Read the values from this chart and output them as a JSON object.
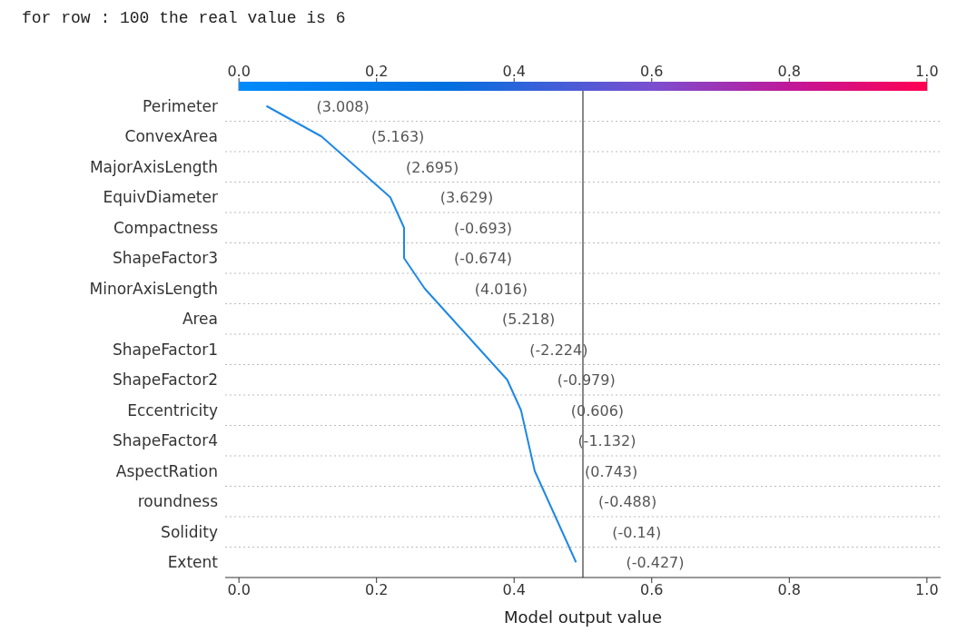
{
  "chart_data": {
    "type": "line",
    "orientation": "horizontal",
    "title": "for row : 100  the real value is  6",
    "xlabel": "Model output value",
    "categories": [
      "Perimeter",
      "ConvexArea",
      "MajorAxisLength",
      "EquivDiameter",
      "Compactness",
      "ShapeFactor3",
      "MinorAxisLength",
      "Area",
      "ShapeFactor1",
      "ShapeFactor2",
      "Eccentricity",
      "ShapeFactor4",
      "AspectRation",
      "roundness",
      "Solidity",
      "Extent"
    ],
    "series": [
      {
        "color": "#1e88e5",
        "values": [
          0.04,
          0.12,
          0.17,
          0.22,
          0.24,
          0.24,
          0.27,
          0.31,
          0.35,
          0.39,
          0.41,
          0.42,
          0.43,
          0.45,
          0.47,
          0.49
        ]
      }
    ],
    "xlim": [
      -0.02,
      1.02
    ],
    "xticks": [
      {
        "value": 0,
        "label": "0.0"
      },
      0.2,
      0.4,
      0.6,
      0.8,
      {
        "value": 1,
        "label": "1.0"
      }
    ],
    "x2lim": [
      -0.02,
      1.02
    ],
    "x2ticks": [
      {
        "value": 0,
        "label": "0.0"
      },
      0.2,
      0.4,
      0.6,
      0.8,
      {
        "value": 1,
        "label": "1.0"
      }
    ],
    "ref_lines": [
      {
        "axis": "x",
        "value": 0.5,
        "color": "#888888"
      }
    ],
    "grid": "y",
    "marker": "none",
    "line_style": "solid",
    "annotations": [
      "(3.008)",
      "(5.163)",
      "(2.695)",
      "(3.629)",
      "(-0.693)",
      "(-0.674)",
      "(4.016)",
      "(5.218)",
      "(-2.224)",
      "(-0.979)",
      "(0.606)",
      "(-1.132)",
      "(0.743)",
      "(-0.488)",
      "(-0.14)",
      "(-0.427)"
    ]
  }
}
